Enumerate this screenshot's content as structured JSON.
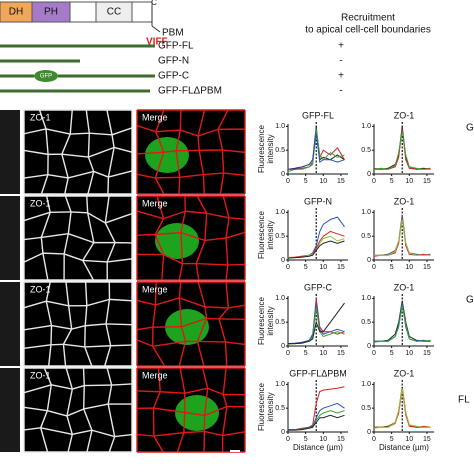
{
  "diagram": {
    "domains": [
      "DH",
      "PH",
      "CC"
    ],
    "c_terminus": "C",
    "pbm": "PBM",
    "motif": "VIFF",
    "recruitment_header": [
      "Recruitment",
      "to apical cell-cell boundaries"
    ]
  },
  "constructs": [
    {
      "name": "GFP-FL",
      "recruitment": "+"
    },
    {
      "name": "GFP-N",
      "recruitment": "-"
    },
    {
      "name": "GFP-C",
      "tag": "GFP",
      "recruitment": "+"
    },
    {
      "name": "GFP-FLΔPBM",
      "recruitment": "-"
    }
  ],
  "image_labels": {
    "zo1": "ZO-1",
    "merge": "Merge"
  },
  "cut_labels": [
    "G",
    "G",
    "FL"
  ],
  "plots": [
    {
      "type": "line",
      "title": "GFP-FL",
      "y_label": [
        "Fluorescence",
        "intensity"
      ],
      "x": [
        0,
        2,
        4,
        6,
        7,
        8,
        9,
        10,
        12,
        14,
        16
      ],
      "xlim": [
        0,
        17
      ],
      "ylim": [
        0,
        1.05
      ],
      "xticks": [
        0,
        5,
        10,
        15
      ],
      "yticks": [
        0,
        0.5,
        {
          "value": 1,
          "label": "1.0"
        }
      ],
      "marker_x": 8,
      "series": [
        {
          "color": "#222222",
          "values": [
            0.1,
            0.12,
            0.15,
            0.2,
            0.3,
            1.0,
            0.3,
            0.35,
            0.3,
            0.4,
            0.3
          ]
        },
        {
          "color": "#d62020",
          "values": [
            0.1,
            0.1,
            0.12,
            0.15,
            0.25,
            0.9,
            0.35,
            0.5,
            0.4,
            0.55,
            0.3
          ]
        },
        {
          "color": "#3aa336",
          "values": [
            0.05,
            0.1,
            0.1,
            0.15,
            0.2,
            0.95,
            0.4,
            0.3,
            0.45,
            0.35,
            0.4
          ]
        },
        {
          "color": "#2a4fc0",
          "values": [
            0.1,
            0.1,
            0.15,
            0.2,
            0.3,
            0.85,
            0.25,
            0.3,
            0.3,
            0.25,
            0.3
          ]
        }
      ]
    },
    {
      "type": "line",
      "title": "ZO-1",
      "x": [
        0,
        2,
        4,
        6,
        7,
        8,
        9,
        10,
        12,
        14,
        16
      ],
      "xlim": [
        0,
        17
      ],
      "ylim": [
        0,
        1.05
      ],
      "xticks": [
        0,
        5,
        10,
        15
      ],
      "yticks": [
        0,
        0.5,
        {
          "value": 1,
          "label": "1.0"
        }
      ],
      "marker_x": 8,
      "series": [
        {
          "color": "#222222",
          "values": [
            0.1,
            0.1,
            0.12,
            0.2,
            0.4,
            1.0,
            0.35,
            0.15,
            0.1,
            0.12,
            0.1
          ]
        },
        {
          "color": "#d62020",
          "values": [
            0.12,
            0.1,
            0.1,
            0.15,
            0.35,
            0.95,
            0.3,
            0.12,
            0.1,
            0.1,
            0.12
          ]
        },
        {
          "color": "#3aa336",
          "values": [
            0.1,
            0.12,
            0.1,
            0.18,
            0.45,
            0.9,
            0.4,
            0.15,
            0.12,
            0.1,
            0.1
          ]
        }
      ]
    },
    {
      "type": "line",
      "title": "GFP-N",
      "y_label": [
        "Fluorescence",
        "intensity"
      ],
      "x": [
        0,
        2,
        4,
        6,
        7,
        8,
        9,
        10,
        12,
        14,
        16
      ],
      "xlim": [
        0,
        17
      ],
      "ylim": [
        0,
        1.05
      ],
      "xticks": [
        0,
        5,
        10,
        15
      ],
      "yticks": [
        0,
        0.5,
        {
          "value": 1,
          "label": "1.0"
        }
      ],
      "marker_x": 8,
      "series": [
        {
          "color": "#2a4fc0",
          "values": [
            0.05,
            0.05,
            0.08,
            0.1,
            0.15,
            0.3,
            0.6,
            0.75,
            0.85,
            0.9,
            0.7
          ]
        },
        {
          "color": "#d62020",
          "values": [
            0.05,
            0.06,
            0.08,
            0.1,
            0.12,
            0.25,
            0.4,
            0.5,
            0.6,
            0.55,
            0.5
          ]
        },
        {
          "color": "#9ac43a",
          "values": [
            0.05,
            0.05,
            0.06,
            0.1,
            0.12,
            0.2,
            0.35,
            0.45,
            0.5,
            0.4,
            0.45
          ]
        },
        {
          "color": "#222222",
          "values": [
            0.04,
            0.05,
            0.06,
            0.08,
            0.1,
            0.2,
            0.3,
            0.35,
            0.4,
            0.35,
            0.4
          ]
        }
      ]
    },
    {
      "type": "line",
      "title": "ZO-1",
      "x": [
        0,
        2,
        4,
        6,
        7,
        8,
        9,
        10,
        12,
        14,
        16
      ],
      "xlim": [
        0,
        17
      ],
      "ylim": [
        0,
        1.05
      ],
      "xticks": [
        0,
        5,
        10,
        15
      ],
      "yticks": [
        0,
        0.5,
        {
          "value": 1,
          "label": "1.0"
        }
      ],
      "marker_x": 8,
      "series": [
        {
          "color": "#2a4fc0",
          "values": [
            0.1,
            0.1,
            0.12,
            0.2,
            0.4,
            0.95,
            0.35,
            0.15,
            0.12,
            0.1,
            0.12
          ]
        },
        {
          "color": "#d62020",
          "values": [
            0.08,
            0.1,
            0.1,
            0.15,
            0.35,
            0.9,
            0.3,
            0.12,
            0.1,
            0.12,
            0.1
          ]
        },
        {
          "color": "#9ac43a",
          "values": [
            0.1,
            0.1,
            0.1,
            0.18,
            0.4,
            0.85,
            0.35,
            0.15,
            0.1,
            0.1,
            0.1
          ]
        }
      ]
    },
    {
      "type": "line",
      "title": "GFP-C",
      "y_label": [
        "Fluorescence",
        "intensity"
      ],
      "x": [
        0,
        2,
        4,
        6,
        7,
        8,
        9,
        10,
        12,
        14,
        16
      ],
      "xlim": [
        0,
        17
      ],
      "ylim": [
        0,
        1.05
      ],
      "xticks": [
        0,
        5,
        10,
        15
      ],
      "yticks": [
        0,
        0.5,
        {
          "value": 1,
          "label": "1.0"
        }
      ],
      "marker_x": 8,
      "series": [
        {
          "color": "#d62020",
          "values": [
            0.05,
            0.05,
            0.08,
            0.1,
            0.2,
            1.0,
            0.4,
            0.3,
            0.3,
            0.25,
            0.3
          ]
        },
        {
          "color": "#2a4fc0",
          "values": [
            0.05,
            0.06,
            0.08,
            0.12,
            0.25,
            0.9,
            0.35,
            0.25,
            0.3,
            0.35,
            0.3
          ]
        },
        {
          "color": "#3aa336",
          "values": [
            0.04,
            0.05,
            0.06,
            0.1,
            0.2,
            0.8,
            0.3,
            0.2,
            0.25,
            0.3,
            0.25
          ]
        },
        {
          "color": "#222222",
          "values": [
            0.05,
            0.05,
            0.06,
            0.1,
            0.15,
            0.5,
            0.3,
            0.3,
            0.5,
            0.7,
            0.9
          ]
        }
      ]
    },
    {
      "type": "line",
      "title": "ZO-1",
      "x": [
        0,
        2,
        4,
        6,
        7,
        8,
        9,
        10,
        12,
        14,
        16
      ],
      "xlim": [
        0,
        17
      ],
      "ylim": [
        0,
        1.05
      ],
      "xticks": [
        0,
        5,
        10,
        15
      ],
      "yticks": [
        0,
        0.5,
        {
          "value": 1,
          "label": "1.0"
        }
      ],
      "marker_x": 8,
      "series": [
        {
          "color": "#222222",
          "values": [
            0.1,
            0.1,
            0.12,
            0.25,
            0.5,
            0.95,
            0.5,
            0.2,
            0.12,
            0.1,
            0.1
          ]
        },
        {
          "color": "#2a4fc0",
          "values": [
            0.1,
            0.1,
            0.1,
            0.2,
            0.45,
            0.9,
            0.4,
            0.15,
            0.1,
            0.12,
            0.1
          ]
        },
        {
          "color": "#3aa336",
          "values": [
            0.08,
            0.1,
            0.1,
            0.2,
            0.4,
            0.85,
            0.45,
            0.15,
            0.1,
            0.1,
            0.12
          ]
        }
      ]
    },
    {
      "type": "line",
      "title": "GFP-FLΔPBM",
      "y_label": [
        "Fluorescence",
        "intensity"
      ],
      "x": [
        0,
        2,
        4,
        6,
        7,
        8,
        9,
        10,
        12,
        14,
        16
      ],
      "xlim": [
        0,
        17
      ],
      "ylim": [
        0,
        1.05
      ],
      "xticks": [
        0,
        5,
        10,
        15
      ],
      "yticks": [
        0,
        0.5,
        {
          "value": 1,
          "label": "1.0"
        }
      ],
      "marker_x": 8,
      "x_label": "Distance (µm)",
      "series": [
        {
          "color": "#d62020",
          "values": [
            0.05,
            0.05,
            0.08,
            0.1,
            0.15,
            0.6,
            0.85,
            0.88,
            0.9,
            0.92,
            0.95
          ]
        },
        {
          "color": "#2a4fc0",
          "values": [
            0.05,
            0.05,
            0.06,
            0.1,
            0.12,
            0.3,
            0.45,
            0.5,
            0.55,
            0.6,
            0.5
          ]
        },
        {
          "color": "#3aa336",
          "values": [
            0.04,
            0.05,
            0.06,
            0.08,
            0.1,
            0.25,
            0.35,
            0.4,
            0.45,
            0.4,
            0.45
          ]
        },
        {
          "color": "#222222",
          "values": [
            0.04,
            0.04,
            0.05,
            0.08,
            0.1,
            0.2,
            0.3,
            0.3,
            0.35,
            0.3,
            0.35
          ]
        }
      ]
    },
    {
      "type": "line",
      "title": "ZO-1",
      "x": [
        0,
        2,
        4,
        6,
        7,
        8,
        9,
        10,
        12,
        14,
        16
      ],
      "xlim": [
        0,
        17
      ],
      "ylim": [
        0,
        1.05
      ],
      "xticks": [
        0,
        5,
        10,
        15
      ],
      "yticks": [
        0,
        0.5,
        {
          "value": 1,
          "label": "1.0"
        }
      ],
      "marker_x": 8,
      "x_label": "Distance (µm)",
      "series": [
        {
          "color": "#222222",
          "values": [
            0.1,
            0.1,
            0.12,
            0.2,
            0.45,
            0.95,
            0.4,
            0.15,
            0.1,
            0.1,
            0.1
          ]
        },
        {
          "color": "#d62020",
          "values": [
            0.1,
            0.1,
            0.1,
            0.18,
            0.4,
            0.9,
            0.35,
            0.12,
            0.1,
            0.12,
            0.1
          ]
        },
        {
          "color": "#9ac43a",
          "values": [
            0.08,
            0.1,
            0.1,
            0.2,
            0.45,
            0.92,
            0.4,
            0.15,
            0.12,
            0.1,
            0.1
          ]
        }
      ]
    }
  ]
}
